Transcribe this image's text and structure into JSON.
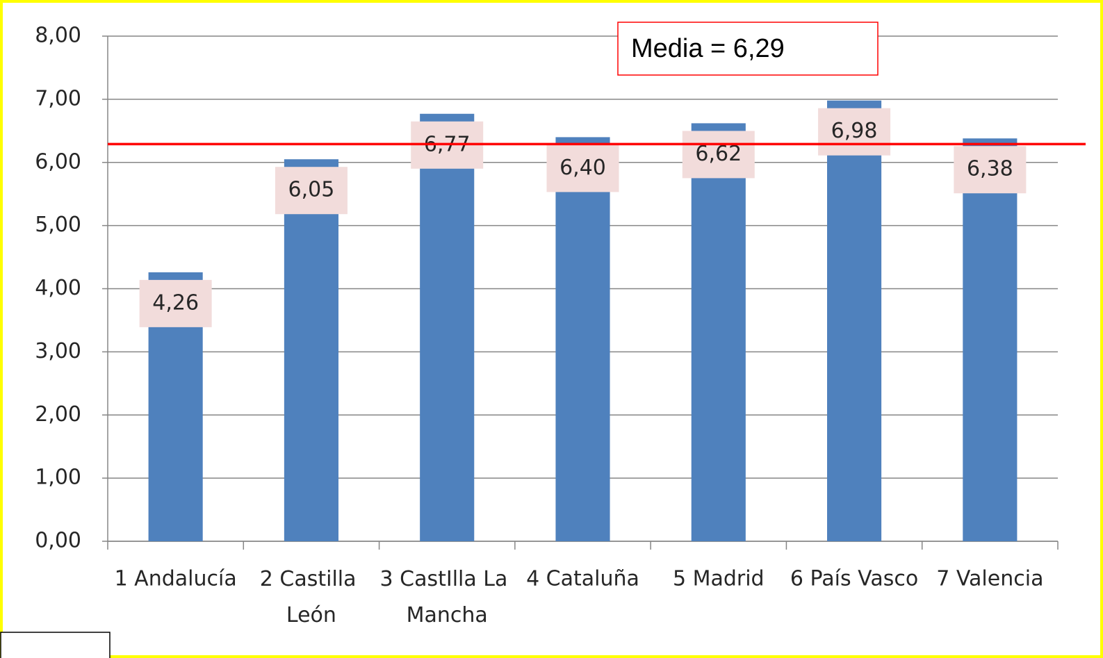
{
  "chart_data": {
    "type": "bar",
    "categories": [
      "1 Andalucía",
      "2 Castilla León",
      "3 CastIlla La Mancha",
      "4 Cataluña",
      "5 Madrid",
      "6 País Vasco",
      "7 Valencia"
    ],
    "values": [
      4.26,
      6.05,
      6.77,
      6.4,
      6.62,
      6.98,
      6.38
    ],
    "value_labels": [
      "4,26",
      "6,05",
      "6,77",
      "6,40",
      "6,62",
      "6,98",
      "6,38"
    ],
    "color": "#4f81bd",
    "ylim": [
      0,
      8
    ],
    "yticks": [
      {
        "value": 0,
        "label": "0,00"
      },
      {
        "value": 1,
        "label": "1,00"
      },
      {
        "value": 2,
        "label": "2,00"
      },
      {
        "value": 3,
        "label": "3,00"
      },
      {
        "value": 4,
        "label": "4,00"
      },
      {
        "value": 5,
        "label": "5,00"
      },
      {
        "value": 6,
        "label": "6,00"
      },
      {
        "value": 7,
        "label": "7,00"
      },
      {
        "value": 8,
        "label": "8,00"
      }
    ],
    "grid": true,
    "mean": 6.29,
    "mean_color": "#ff0000",
    "annotation": "Media = 6,29"
  }
}
